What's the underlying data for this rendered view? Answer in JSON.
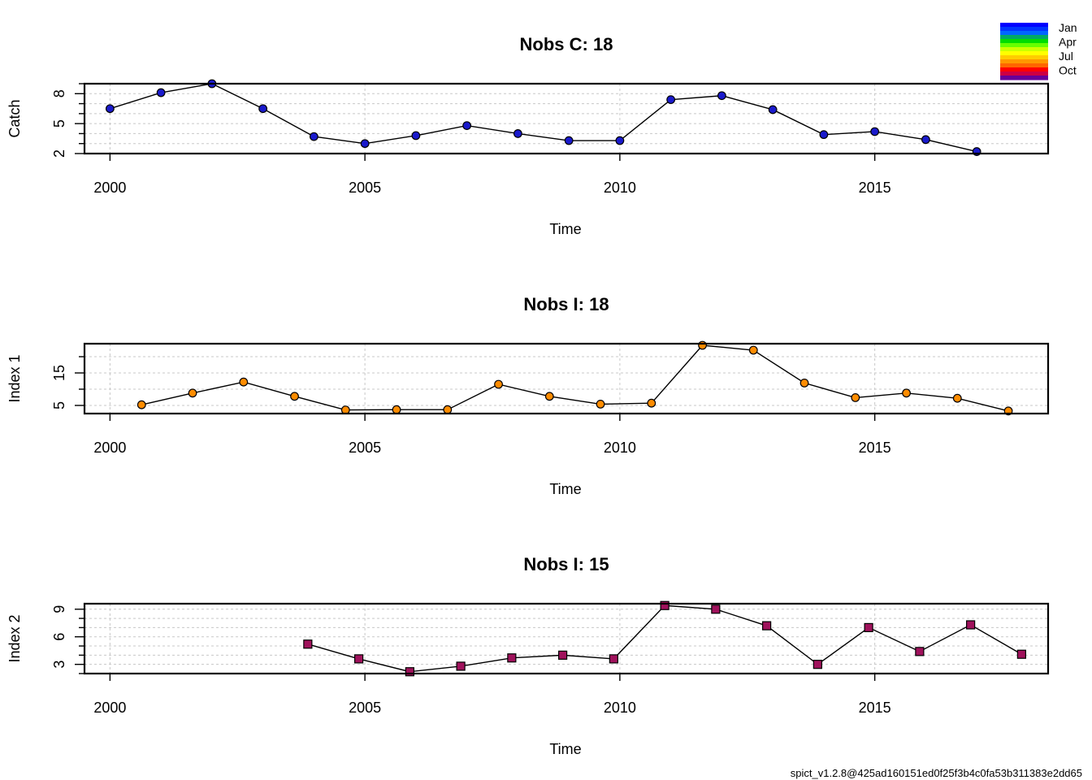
{
  "chart_data": [
    {
      "type": "line",
      "title": "Nobs C: 18",
      "xlabel": "Time",
      "ylabel": "Catch",
      "xlim": [
        1999.5,
        2018.4
      ],
      "ylim": [
        2.0,
        9.0
      ],
      "xticks": [
        2000,
        2005,
        2010,
        2015
      ],
      "yticks": [
        2,
        5,
        8
      ],
      "grid": true,
      "marker": "circle",
      "color": "#1a1acc",
      "series": [
        {
          "x": [
            2000,
            2001,
            2002,
            2003,
            2004,
            2005,
            2006,
            2007,
            2008,
            2009,
            2010,
            2011,
            2012,
            2013,
            2014,
            2015,
            2016,
            2017
          ],
          "values": [
            6.5,
            8.1,
            9.0,
            6.5,
            3.7,
            3.0,
            3.8,
            4.8,
            4.0,
            3.3,
            3.3,
            7.4,
            7.8,
            6.4,
            3.9,
            4.2,
            3.4,
            2.2
          ]
        }
      ]
    },
    {
      "type": "line",
      "title": "Nobs I: 18",
      "xlabel": "Time",
      "ylabel": "Index 1",
      "xlim": [
        1999.5,
        2018.4
      ],
      "ylim": [
        2.5,
        24.0
      ],
      "xticks": [
        2000,
        2005,
        2010,
        2015
      ],
      "yticks": [
        5,
        15
      ],
      "grid": true,
      "marker": "circle",
      "color": "#ff8c00",
      "series": [
        {
          "x": [
            2000.62,
            2001.62,
            2002.62,
            2003.62,
            2004.62,
            2005.62,
            2006.62,
            2007.62,
            2008.62,
            2009.62,
            2010.62,
            2011.62,
            2012.62,
            2013.62,
            2014.62,
            2015.62,
            2016.62,
            2017.62
          ],
          "values": [
            5.2,
            8.8,
            12.2,
            7.8,
            3.6,
            3.7,
            3.7,
            11.5,
            7.8,
            5.4,
            5.7,
            23.5,
            22.0,
            11.9,
            7.4,
            8.8,
            7.2,
            3.3
          ]
        }
      ]
    },
    {
      "type": "line",
      "title": "Nobs I: 15",
      "xlabel": "Time",
      "ylabel": "Index 2",
      "xlim": [
        1999.5,
        2018.4
      ],
      "ylim": [
        2.0,
        9.6
      ],
      "xticks": [
        2000,
        2005,
        2010,
        2015
      ],
      "yticks": [
        3,
        6,
        9
      ],
      "grid": true,
      "marker": "square",
      "color": "#a0125c",
      "series": [
        {
          "x": [
            2003.88,
            2004.88,
            2005.88,
            2006.88,
            2007.88,
            2008.88,
            2009.88,
            2010.88,
            2011.88,
            2012.88,
            2013.88,
            2014.88,
            2015.88,
            2016.88,
            2017.88
          ],
          "values": [
            5.2,
            3.6,
            2.2,
            2.8,
            3.7,
            4.0,
            3.6,
            9.4,
            9.0,
            7.2,
            3.0,
            7.0,
            4.4,
            7.3,
            4.1
          ]
        }
      ]
    }
  ],
  "legend": {
    "labels": [
      "Jan",
      "Apr",
      "Jul",
      "Oct"
    ],
    "colors": [
      "#0000ff",
      "#0033ff",
      "#0066ff",
      "#00aa66",
      "#00dd00",
      "#66ff00",
      "#ccff00",
      "#ffff00",
      "#ffcc00",
      "#ff9900",
      "#ff6600",
      "#ff0000",
      "#cc0044",
      "#660099"
    ]
  },
  "footer": "spict_v1.2.8@425ad160151ed0f25f3b4c0fa53b311383e2dd65"
}
